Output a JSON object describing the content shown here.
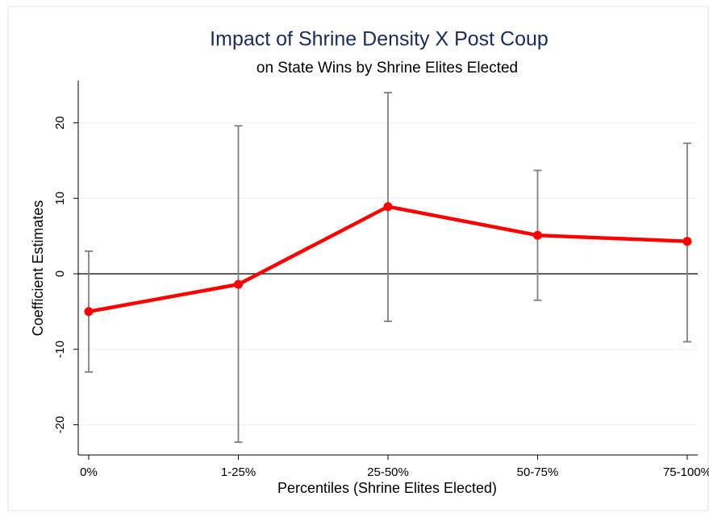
{
  "chart_data": {
    "type": "line",
    "title": "Impact of Shrine Density X Post Coup",
    "subtitle": "on State Wins by Shrine Elites Elected",
    "x_label": "Percentiles (Shrine Elites Elected)",
    "y_label": "Coefficient Estimates",
    "categories": [
      "0%",
      "1-25%",
      "25-50%",
      "50-75%",
      "75-100%"
    ],
    "series": [
      {
        "color": "#ff0000",
        "values": [
          -5.0,
          -1.4,
          8.9,
          5.1,
          4.3
        ],
        "ci_low": [
          -13.0,
          -22.3,
          -6.3,
          -3.5,
          -9.0
        ],
        "ci_high": [
          3.0,
          19.6,
          24.0,
          13.7,
          17.3
        ]
      }
    ],
    "error_color": "#808080",
    "ylim": [
      -24,
      25.6
    ],
    "yticks": [
      -20,
      -10,
      0,
      10,
      20
    ],
    "grid": true,
    "reference_line": 0
  }
}
